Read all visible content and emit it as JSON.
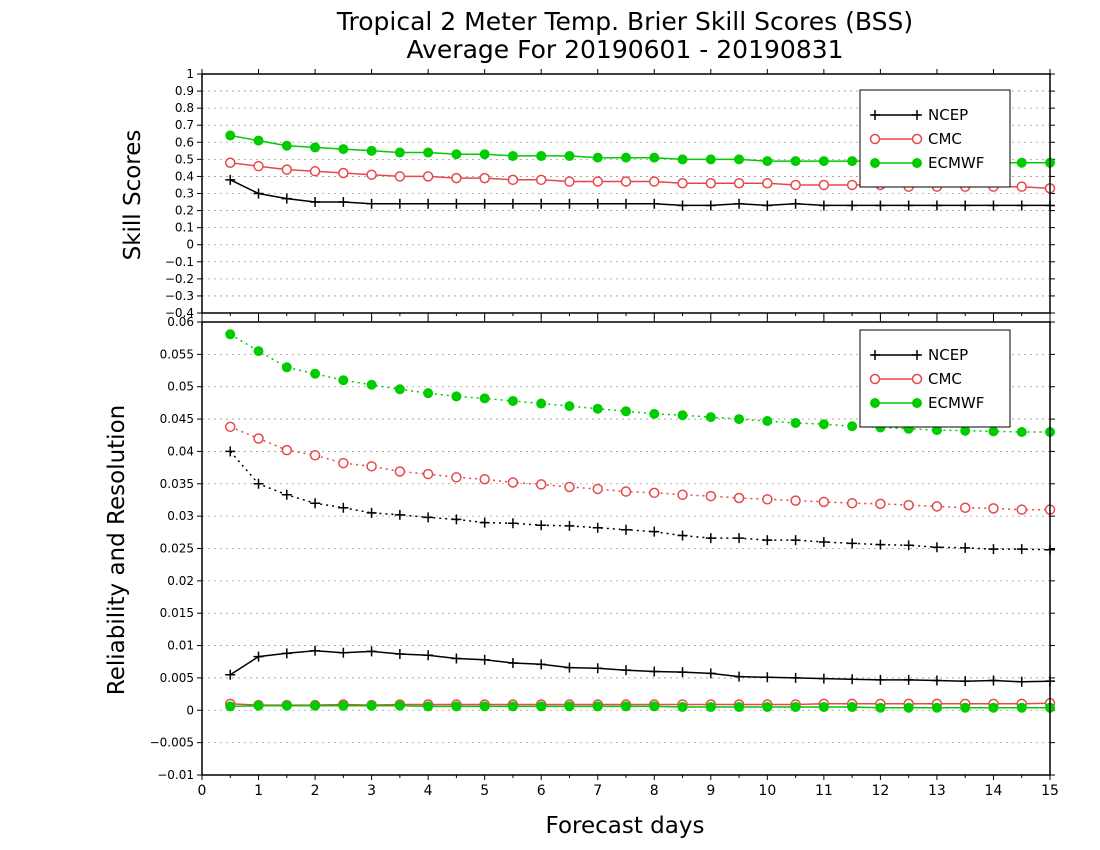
{
  "header": {
    "title_line1": "Tropical 2 Meter Temp. Brier Skill Scores (BSS)",
    "title_line2": "Average For 20190601 - 20190831"
  },
  "colors": {
    "NCEP": "#000000",
    "CMC": "#e8474a",
    "ECMWF": "#00cc00"
  },
  "chart_data": [
    {
      "type": "line",
      "ylabel": "Skill Scores",
      "xlabel": "",
      "xlim": [
        0,
        15
      ],
      "ylim": [
        -0.4,
        1
      ],
      "x_ticks": [
        "0",
        "1",
        "2",
        "3",
        "4",
        "5",
        "6",
        "7",
        "8",
        "9",
        "10",
        "11",
        "12",
        "13",
        "14",
        "15"
      ],
      "y_ticks": [
        "−0.4",
        "−0.3",
        "−0.2",
        "−0.1",
        "0",
        "0.1",
        "0.2",
        "0.3",
        "0.4",
        "0.5",
        "0.6",
        "0.7",
        "0.8",
        "0.9",
        "1"
      ],
      "grid": true,
      "legend_position": "top-right",
      "x": [
        0.5,
        1,
        1.5,
        2,
        2.5,
        3,
        3.5,
        4,
        4.5,
        5,
        5.5,
        6,
        6.5,
        7,
        7.5,
        8,
        8.5,
        9,
        9.5,
        10,
        10.5,
        11,
        11.5,
        12,
        12.5,
        13,
        13.5,
        14,
        14.5,
        15
      ],
      "series": [
        {
          "name": "NCEP",
          "marker": "plus",
          "line": "solid",
          "values": [
            0.38,
            0.3,
            0.27,
            0.25,
            0.25,
            0.24,
            0.24,
            0.24,
            0.24,
            0.24,
            0.24,
            0.24,
            0.24,
            0.24,
            0.24,
            0.24,
            0.23,
            0.23,
            0.24,
            0.23,
            0.24,
            0.23,
            0.23,
            0.23,
            0.23,
            0.23,
            0.23,
            0.23,
            0.23,
            0.23
          ]
        },
        {
          "name": "CMC",
          "marker": "open-circle",
          "line": "solid",
          "values": [
            0.48,
            0.46,
            0.44,
            0.43,
            0.42,
            0.41,
            0.4,
            0.4,
            0.39,
            0.39,
            0.38,
            0.38,
            0.37,
            0.37,
            0.37,
            0.37,
            0.36,
            0.36,
            0.36,
            0.36,
            0.35,
            0.35,
            0.35,
            0.35,
            0.34,
            0.34,
            0.34,
            0.34,
            0.34,
            0.33
          ]
        },
        {
          "name": "ECMWF",
          "marker": "filled-circle",
          "line": "solid",
          "values": [
            0.64,
            0.61,
            0.58,
            0.57,
            0.56,
            0.55,
            0.54,
            0.54,
            0.53,
            0.53,
            0.52,
            0.52,
            0.52,
            0.51,
            0.51,
            0.51,
            0.5,
            0.5,
            0.5,
            0.49,
            0.49,
            0.49,
            0.49,
            0.49,
            0.48,
            0.48,
            0.48,
            0.48,
            0.48,
            0.48
          ]
        }
      ]
    },
    {
      "type": "line",
      "ylabel": "Reliability and Resolution",
      "xlabel": "Forecast days",
      "xlim": [
        0,
        15
      ],
      "ylim": [
        -0.01,
        0.06
      ],
      "x_ticks": [
        "0",
        "1",
        "2",
        "3",
        "4",
        "5",
        "6",
        "7",
        "8",
        "9",
        "10",
        "11",
        "12",
        "13",
        "14",
        "15"
      ],
      "y_ticks": [
        "−0.01",
        "−0.005",
        "0",
        "0.005",
        "0.01",
        "0.015",
        "0.02",
        "0.025",
        "0.03",
        "0.035",
        "0.04",
        "0.045",
        "0.05",
        "0.055",
        "0.06"
      ],
      "grid": true,
      "legend_position": "top-right",
      "x": [
        0.5,
        1,
        1.5,
        2,
        2.5,
        3,
        3.5,
        4,
        4.5,
        5,
        5.5,
        6,
        6.5,
        7,
        7.5,
        8,
        8.5,
        9,
        9.5,
        10,
        10.5,
        11,
        11.5,
        12,
        12.5,
        13,
        13.5,
        14,
        14.5,
        15
      ],
      "series": [
        {
          "name": "NCEP",
          "marker": "plus",
          "line": "dotted",
          "values": [
            0.04,
            0.035,
            0.0333,
            0.032,
            0.0313,
            0.0305,
            0.0302,
            0.0298,
            0.0295,
            0.029,
            0.0289,
            0.0286,
            0.0285,
            0.0282,
            0.0279,
            0.0276,
            0.027,
            0.0266,
            0.0266,
            0.0263,
            0.0263,
            0.026,
            0.0258,
            0.0256,
            0.0255,
            0.0252,
            0.0251,
            0.0249,
            0.0249,
            0.0248
          ]
        },
        {
          "name": "CMC",
          "marker": "open-circle",
          "line": "dotted",
          "values": [
            0.0438,
            0.042,
            0.0402,
            0.0394,
            0.0382,
            0.0377,
            0.0369,
            0.0365,
            0.036,
            0.0357,
            0.0352,
            0.0349,
            0.0345,
            0.0342,
            0.0338,
            0.0336,
            0.0333,
            0.0331,
            0.0328,
            0.0326,
            0.0324,
            0.0322,
            0.032,
            0.0319,
            0.0317,
            0.0315,
            0.0313,
            0.0312,
            0.031,
            0.031
          ]
        },
        {
          "name": "ECMWF",
          "marker": "filled-circle",
          "line": "dotted",
          "values": [
            0.0581,
            0.0555,
            0.053,
            0.052,
            0.051,
            0.0503,
            0.0496,
            0.049,
            0.0485,
            0.0482,
            0.0478,
            0.0474,
            0.047,
            0.0466,
            0.0462,
            0.0458,
            0.0456,
            0.0453,
            0.045,
            0.0447,
            0.0444,
            0.0442,
            0.0439,
            0.0437,
            0.0435,
            0.0433,
            0.0432,
            0.0431,
            0.043,
            0.043
          ]
        },
        {
          "name": "NCEP",
          "marker": "plus",
          "line": "solid",
          "values": [
            0.0055,
            0.0083,
            0.0088,
            0.0092,
            0.0089,
            0.0091,
            0.0087,
            0.0085,
            0.008,
            0.0078,
            0.0073,
            0.0071,
            0.0066,
            0.0065,
            0.0062,
            0.006,
            0.0059,
            0.0057,
            0.0052,
            0.0051,
            0.005,
            0.0049,
            0.0048,
            0.0047,
            0.0047,
            0.0046,
            0.0045,
            0.0046,
            0.0044,
            0.0045
          ]
        },
        {
          "name": "CMC",
          "marker": "open-circle",
          "line": "solid",
          "values": [
            0.001,
            0.0008,
            0.0008,
            0.0008,
            0.0009,
            0.0008,
            0.0009,
            0.0009,
            0.0009,
            0.0009,
            0.0009,
            0.0009,
            0.0009,
            0.0009,
            0.0009,
            0.0009,
            0.0009,
            0.0009,
            0.0009,
            0.0009,
            0.0009,
            0.001,
            0.001,
            0.001,
            0.001,
            0.001,
            0.001,
            0.001,
            0.001,
            0.0011
          ]
        },
        {
          "name": "ECMWF",
          "marker": "filled-circle",
          "line": "solid",
          "values": [
            0.0006,
            0.0007,
            0.0007,
            0.0007,
            0.0007,
            0.0007,
            0.0007,
            0.0006,
            0.0006,
            0.0006,
            0.0006,
            0.0006,
            0.0006,
            0.0006,
            0.0006,
            0.0006,
            0.0005,
            0.0005,
            0.0005,
            0.0005,
            0.0005,
            0.0005,
            0.0005,
            0.0004,
            0.0004,
            0.0004,
            0.0004,
            0.0004,
            0.0004,
            0.0004
          ]
        }
      ]
    }
  ]
}
